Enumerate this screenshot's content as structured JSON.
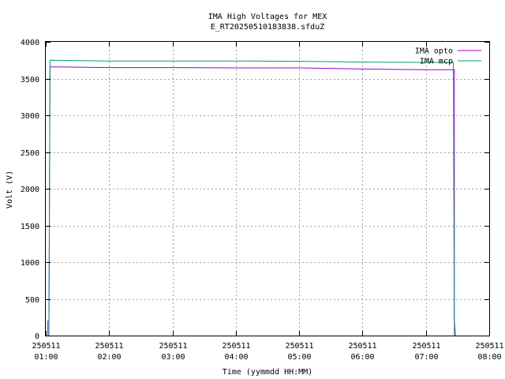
{
  "chart_data": {
    "type": "line",
    "title": "IMA High Voltages for MEX",
    "subtitle": "E_RT20250510183838.sfduZ",
    "xlabel": "Time (yymmdd HH:MM)",
    "ylabel": "Volt (V)",
    "xlim": [
      "2025-05-11 01:00",
      "2025-05-11 08:00"
    ],
    "ylim": [
      0,
      4000
    ],
    "grid": true,
    "legend_position": "top-right",
    "x_ticks": [
      {
        "date": "250511",
        "time": "01:00"
      },
      {
        "date": "250511",
        "time": "02:00"
      },
      {
        "date": "250511",
        "time": "03:00"
      },
      {
        "date": "250511",
        "time": "04:00"
      },
      {
        "date": "250511",
        "time": "05:00"
      },
      {
        "date": "250511",
        "time": "06:00"
      },
      {
        "date": "250511",
        "time": "07:00"
      },
      {
        "date": "250511",
        "time": "08:00"
      }
    ],
    "y_ticks": [
      0,
      500,
      1000,
      1500,
      2000,
      2500,
      3000,
      3500,
      4000
    ],
    "series": [
      {
        "name": "IMA opto",
        "color": "#9400d3",
        "points": [
          [
            "2025-05-11 01:02",
            0
          ],
          [
            "2025-05-11 01:02",
            200
          ],
          [
            "2025-05-11 01:03",
            200
          ],
          [
            "2025-05-11 01:04",
            3660
          ],
          [
            "2025-05-11 02:00",
            3650
          ],
          [
            "2025-05-11 03:00",
            3650
          ],
          [
            "2025-05-11 04:00",
            3645
          ],
          [
            "2025-05-11 05:00",
            3645
          ],
          [
            "2025-05-11 06:00",
            3630
          ],
          [
            "2025-05-11 07:00",
            3620
          ],
          [
            "2025-05-11 07:27",
            3620
          ],
          [
            "2025-05-11 07:27",
            200
          ],
          [
            "2025-05-11 07:28",
            0
          ]
        ]
      },
      {
        "name": "IMA mcp",
        "color": "#009e73",
        "points": [
          [
            "2025-05-11 01:03",
            0
          ],
          [
            "2025-05-11 01:04",
            3750
          ],
          [
            "2025-05-11 02:00",
            3740
          ],
          [
            "2025-05-11 03:00",
            3740
          ],
          [
            "2025-05-11 04:00",
            3740
          ],
          [
            "2025-05-11 05:00",
            3735
          ],
          [
            "2025-05-11 06:00",
            3725
          ],
          [
            "2025-05-11 07:00",
            3720
          ],
          [
            "2025-05-11 07:26",
            3720
          ],
          [
            "2025-05-11 07:27",
            0
          ]
        ]
      }
    ]
  }
}
